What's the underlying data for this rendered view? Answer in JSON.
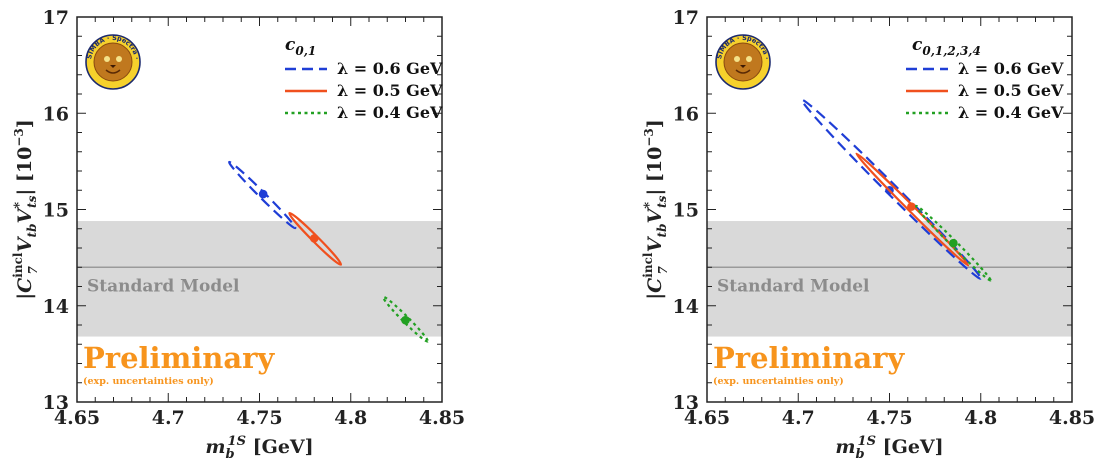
{
  "chart_data": [
    {
      "type": "scatter",
      "xlabel": "m_b^{1S} [GeV]",
      "ylabel": "|C_7^{incl} V_tb V_ts^*| [10^-3]",
      "xlim": [
        4.65,
        4.85
      ],
      "ylim": [
        13,
        17
      ],
      "xticks": [
        "4.65",
        "4.7",
        "4.75",
        "4.8",
        "4.85"
      ],
      "yticks": [
        "13",
        "14",
        "15",
        "16",
        "17"
      ],
      "grid": false,
      "legend_position": "top-right",
      "legend_title": "c_{0,1}",
      "logo_text": "SIMBA · Spectra · Analysis of B Meson Inclusive",
      "reference": {
        "label": "Standard Model",
        "value": 14.4,
        "band": [
          13.68,
          14.88
        ]
      },
      "annotation": {
        "title": "Preliminary",
        "subtitle": "(exp. uncertainties only)"
      },
      "series": [
        {
          "name": "λ = 0.6 GeV",
          "color": "#1f3ed6",
          "style": "dashed",
          "center": [
            4.752,
            15.16
          ],
          "ellipse_x": [
            4.738,
            4.765
          ],
          "ellipse_y": [
            14.72,
            15.58
          ]
        },
        {
          "name": "λ = 0.5 GeV",
          "color": "#f0501e",
          "style": "solid",
          "center": [
            4.78,
            14.7
          ],
          "ellipse_x": [
            4.771,
            4.79
          ],
          "ellipse_y": [
            14.34,
            15.05
          ]
        },
        {
          "name": "λ = 0.4 GeV",
          "color": "#22a022",
          "style": "dotted",
          "center": [
            4.83,
            13.85
          ],
          "ellipse_x": [
            4.822,
            4.838
          ],
          "ellipse_y": [
            13.55,
            14.17
          ]
        }
      ]
    },
    {
      "type": "scatter",
      "xlabel": "m_b^{1S} [GeV]",
      "ylabel": "|C_7^{incl} V_tb V_ts^*| [10^-3]",
      "xlim": [
        4.65,
        4.85
      ],
      "ylim": [
        13,
        17
      ],
      "xticks": [
        "4.65",
        "4.7",
        "4.75",
        "4.8",
        "4.85"
      ],
      "yticks": [
        "13",
        "14",
        "15",
        "16",
        "17"
      ],
      "grid": false,
      "legend_position": "top-right",
      "legend_title": "c_{0,1,2,3,4}",
      "logo_text": "SIMBA · Spectra · Analysis of B Meson Inclusive",
      "reference": {
        "label": "Standard Model",
        "value": 14.4,
        "band": [
          13.68,
          14.88
        ]
      },
      "annotation": {
        "title": "Preliminary",
        "subtitle": "(exp. uncertainties only)"
      },
      "series": [
        {
          "name": "λ = 0.6 GeV",
          "color": "#1f3ed6",
          "style": "dashed",
          "center": [
            4.75,
            15.2
          ],
          "ellipse_x": [
            4.7,
            4.802
          ],
          "ellipse_y": [
            14.32,
            16.1
          ]
        },
        {
          "name": "λ = 0.5 GeV",
          "color": "#f0501e",
          "style": "solid",
          "center": [
            4.762,
            15.03
          ],
          "ellipse_x": [
            4.734,
            4.791
          ],
          "ellipse_y": [
            14.38,
            15.62
          ]
        },
        {
          "name": "λ = 0.4 GeV",
          "color": "#22a022",
          "style": "dotted",
          "center": [
            4.785,
            14.65
          ],
          "ellipse_x": [
            4.768,
            4.802
          ],
          "ellipse_y": [
            14.2,
            15.1
          ]
        }
      ]
    }
  ]
}
